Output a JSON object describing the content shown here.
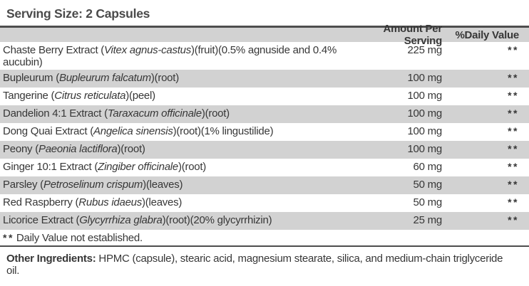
{
  "title": "Serving Size: 2 Capsules",
  "colors": {
    "row_shade": "#d2d2d2",
    "rule": "#4d4d4d",
    "text": "#373737"
  },
  "table": {
    "headers": {
      "amount": "Amount Per Serving",
      "daily_value": "%Daily Value"
    },
    "rows": [
      {
        "name": [
          {
            "t": "Chaste Berry Extract ("
          },
          {
            "t": "Vitex agnus-castus",
            "i": true
          },
          {
            "t": ")(fruit)(0.5% agnuside and 0.4% aucubin)"
          }
        ],
        "amount": "225 mg",
        "dv": "**",
        "shade": false
      },
      {
        "name": [
          {
            "t": "Bupleurum ("
          },
          {
            "t": "Bupleurum falcatum",
            "i": true
          },
          {
            "t": ")(root)"
          }
        ],
        "amount": "100 mg",
        "dv": "**",
        "shade": true
      },
      {
        "name": [
          {
            "t": "Tangerine ("
          },
          {
            "t": "Citrus reticulata",
            "i": true
          },
          {
            "t": ")(peel)"
          }
        ],
        "amount": "100 mg",
        "dv": "**",
        "shade": false
      },
      {
        "name": [
          {
            "t": "Dandelion 4:1 Extract ("
          },
          {
            "t": "Taraxacum officinale",
            "i": true
          },
          {
            "t": ")(root)"
          }
        ],
        "amount": "100 mg",
        "dv": "**",
        "shade": true
      },
      {
        "name": [
          {
            "t": "Dong Quai Extract ("
          },
          {
            "t": "Angelica sinensis",
            "i": true
          },
          {
            "t": ")(root)(1% lingustilide)"
          }
        ],
        "amount": "100 mg",
        "dv": "**",
        "shade": false
      },
      {
        "name": [
          {
            "t": "Peony ("
          },
          {
            "t": "Paeonia lactiflora",
            "i": true
          },
          {
            "t": ")(root)"
          }
        ],
        "amount": "100 mg",
        "dv": "**",
        "shade": true
      },
      {
        "name": [
          {
            "t": "Ginger 10:1 Extract ("
          },
          {
            "t": "Zingiber officinale",
            "i": true
          },
          {
            "t": ")(root)"
          }
        ],
        "amount": "60 mg",
        "dv": "**",
        "shade": false
      },
      {
        "name": [
          {
            "t": "Parsley ("
          },
          {
            "t": "Petroselinum crispum",
            "i": true
          },
          {
            "t": ")(leaves)"
          }
        ],
        "amount": "50 mg",
        "dv": "**",
        "shade": true
      },
      {
        "name": [
          {
            "t": "Red Raspberry ("
          },
          {
            "t": "Rubus idaeus",
            "i": true
          },
          {
            "t": ")(leaves)"
          }
        ],
        "amount": "50 mg",
        "dv": "**",
        "shade": false
      },
      {
        "name": [
          {
            "t": "Licorice Extract ("
          },
          {
            "t": "Glycyrrhiza glabra",
            "i": true
          },
          {
            "t": ")(root)(20% glycyrrhizin)"
          }
        ],
        "amount": "25 mg",
        "dv": "**",
        "shade": true
      }
    ],
    "footnote": {
      "marker": "**",
      "text": "Daily Value not established."
    }
  },
  "other_ingredients": {
    "label": "Other Ingredients:",
    "text": " HPMC (capsule), stearic acid, magnesium stearate, silica, and medium-chain triglyceride oil."
  }
}
